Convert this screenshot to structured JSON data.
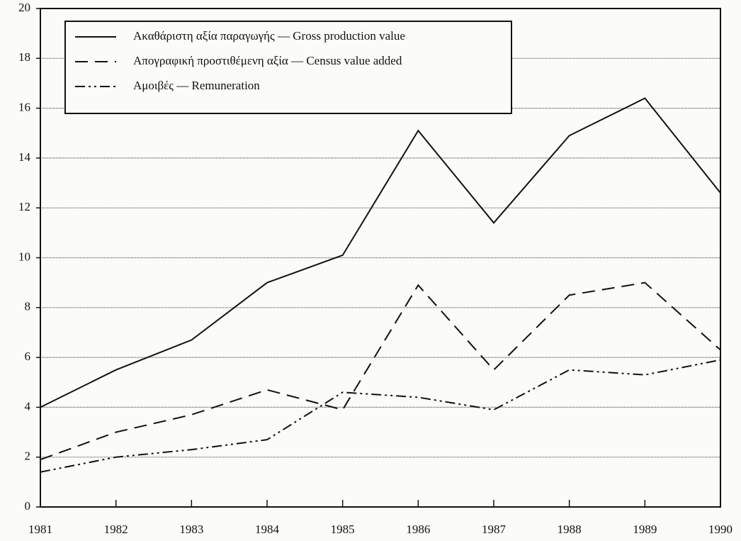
{
  "chart_data": {
    "type": "line",
    "x": [
      1981,
      1982,
      1983,
      1984,
      1985,
      1986,
      1987,
      1988,
      1989,
      1990
    ],
    "xlim": [
      1981,
      1990
    ],
    "xticks": [
      1981,
      1982,
      1983,
      1984,
      1985,
      1986,
      1987,
      1988,
      1989,
      1990
    ],
    "ylim": [
      0,
      20
    ],
    "yticks": [
      0,
      2,
      4,
      6,
      8,
      10,
      12,
      14,
      16,
      18,
      20
    ],
    "grid": true,
    "legend": "upper left",
    "series": [
      {
        "name": "Ακαθάριστη αξία παραγωγής — Gross production value",
        "color": "#111111",
        "style": "solid",
        "values": [
          4.0,
          5.5,
          6.7,
          9.0,
          10.1,
          15.1,
          11.4,
          14.9,
          16.4,
          12.6
        ]
      },
      {
        "name": "Απογραφική προστιθέμενη αξία — Census value added",
        "color": "#111111",
        "style": "dashed",
        "values": [
          1.9,
          3.0,
          3.7,
          4.7,
          3.9,
          8.9,
          5.5,
          8.5,
          9.0,
          6.3
        ]
      },
      {
        "name": "Αμοιβές — Remuneration",
        "color": "#111111",
        "style": "dashdot",
        "values": [
          1.4,
          2.0,
          2.3,
          2.7,
          4.6,
          4.4,
          3.9,
          5.5,
          5.3,
          5.9
        ]
      }
    ]
  }
}
